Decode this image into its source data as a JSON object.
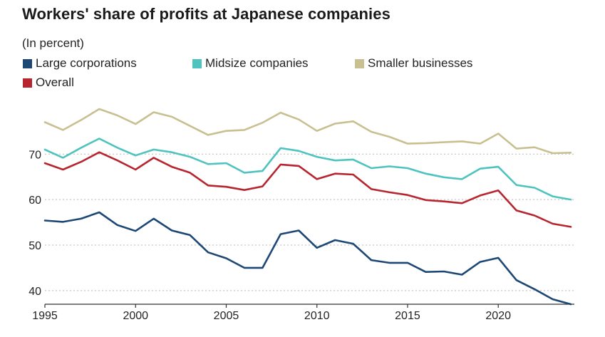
{
  "chart_data": {
    "type": "line",
    "title": "Workers' share of profits at Japanese companies",
    "subtitle": "(In percent)",
    "xlabel": "",
    "ylabel": "",
    "xlim": [
      1995,
      2024
    ],
    "ylim": [
      37,
      81
    ],
    "yticks": [
      "40",
      "50",
      "60",
      "70"
    ],
    "xticks": [
      "1995",
      "2000",
      "2005",
      "2010",
      "2015",
      "2020"
    ],
    "grid": "horizontal dotted",
    "legend_position": "top-left",
    "x": [
      1995,
      1996,
      1997,
      1998,
      1999,
      2000,
      2001,
      2002,
      2003,
      2004,
      2005,
      2006,
      2007,
      2008,
      2009,
      2010,
      2011,
      2012,
      2013,
      2014,
      2015,
      2016,
      2017,
      2018,
      2019,
      2020,
      2021,
      2022,
      2023,
      2024
    ],
    "series": [
      {
        "name": "Large corporations",
        "color": "#1d4775",
        "values": [
          55.4,
          55.1,
          55.8,
          57.2,
          54.4,
          53.1,
          55.8,
          53.2,
          52.2,
          48.4,
          47.1,
          45.0,
          45.0,
          52.4,
          53.2,
          49.4,
          51.1,
          50.3,
          46.7,
          46.1,
          46.1,
          44.1,
          44.2,
          43.5,
          46.3,
          47.2,
          42.3,
          40.3,
          38.1,
          37.0
        ]
      },
      {
        "name": "Midsize companies",
        "color": "#4ec3bf",
        "values": [
          71.0,
          69.2,
          71.4,
          73.4,
          71.4,
          69.7,
          71.0,
          70.4,
          69.4,
          67.8,
          68.0,
          65.9,
          66.3,
          71.3,
          70.7,
          69.4,
          68.6,
          68.8,
          66.9,
          67.3,
          66.9,
          65.7,
          64.9,
          64.5,
          66.8,
          67.2,
          63.2,
          62.6,
          60.7,
          60.0
        ]
      },
      {
        "name": "Smaller businesses",
        "color": "#c9c091",
        "values": [
          77.0,
          75.3,
          77.5,
          79.9,
          78.5,
          76.6,
          79.2,
          78.2,
          76.2,
          74.2,
          75.1,
          75.3,
          76.9,
          79.1,
          77.6,
          75.1,
          76.7,
          77.2,
          74.9,
          73.8,
          72.3,
          72.4,
          72.6,
          72.8,
          72.3,
          74.5,
          71.2,
          71.5,
          70.2,
          70.3
        ]
      },
      {
        "name": "Overall",
        "color": "#b7252f",
        "values": [
          68.0,
          66.6,
          68.3,
          70.4,
          68.6,
          66.6,
          69.2,
          67.2,
          65.9,
          63.1,
          62.8,
          62.1,
          62.9,
          67.7,
          67.4,
          64.5,
          65.7,
          65.5,
          62.3,
          61.6,
          61.0,
          59.9,
          59.6,
          59.2,
          60.9,
          62.0,
          57.6,
          56.5,
          54.7,
          54.0
        ]
      }
    ]
  }
}
